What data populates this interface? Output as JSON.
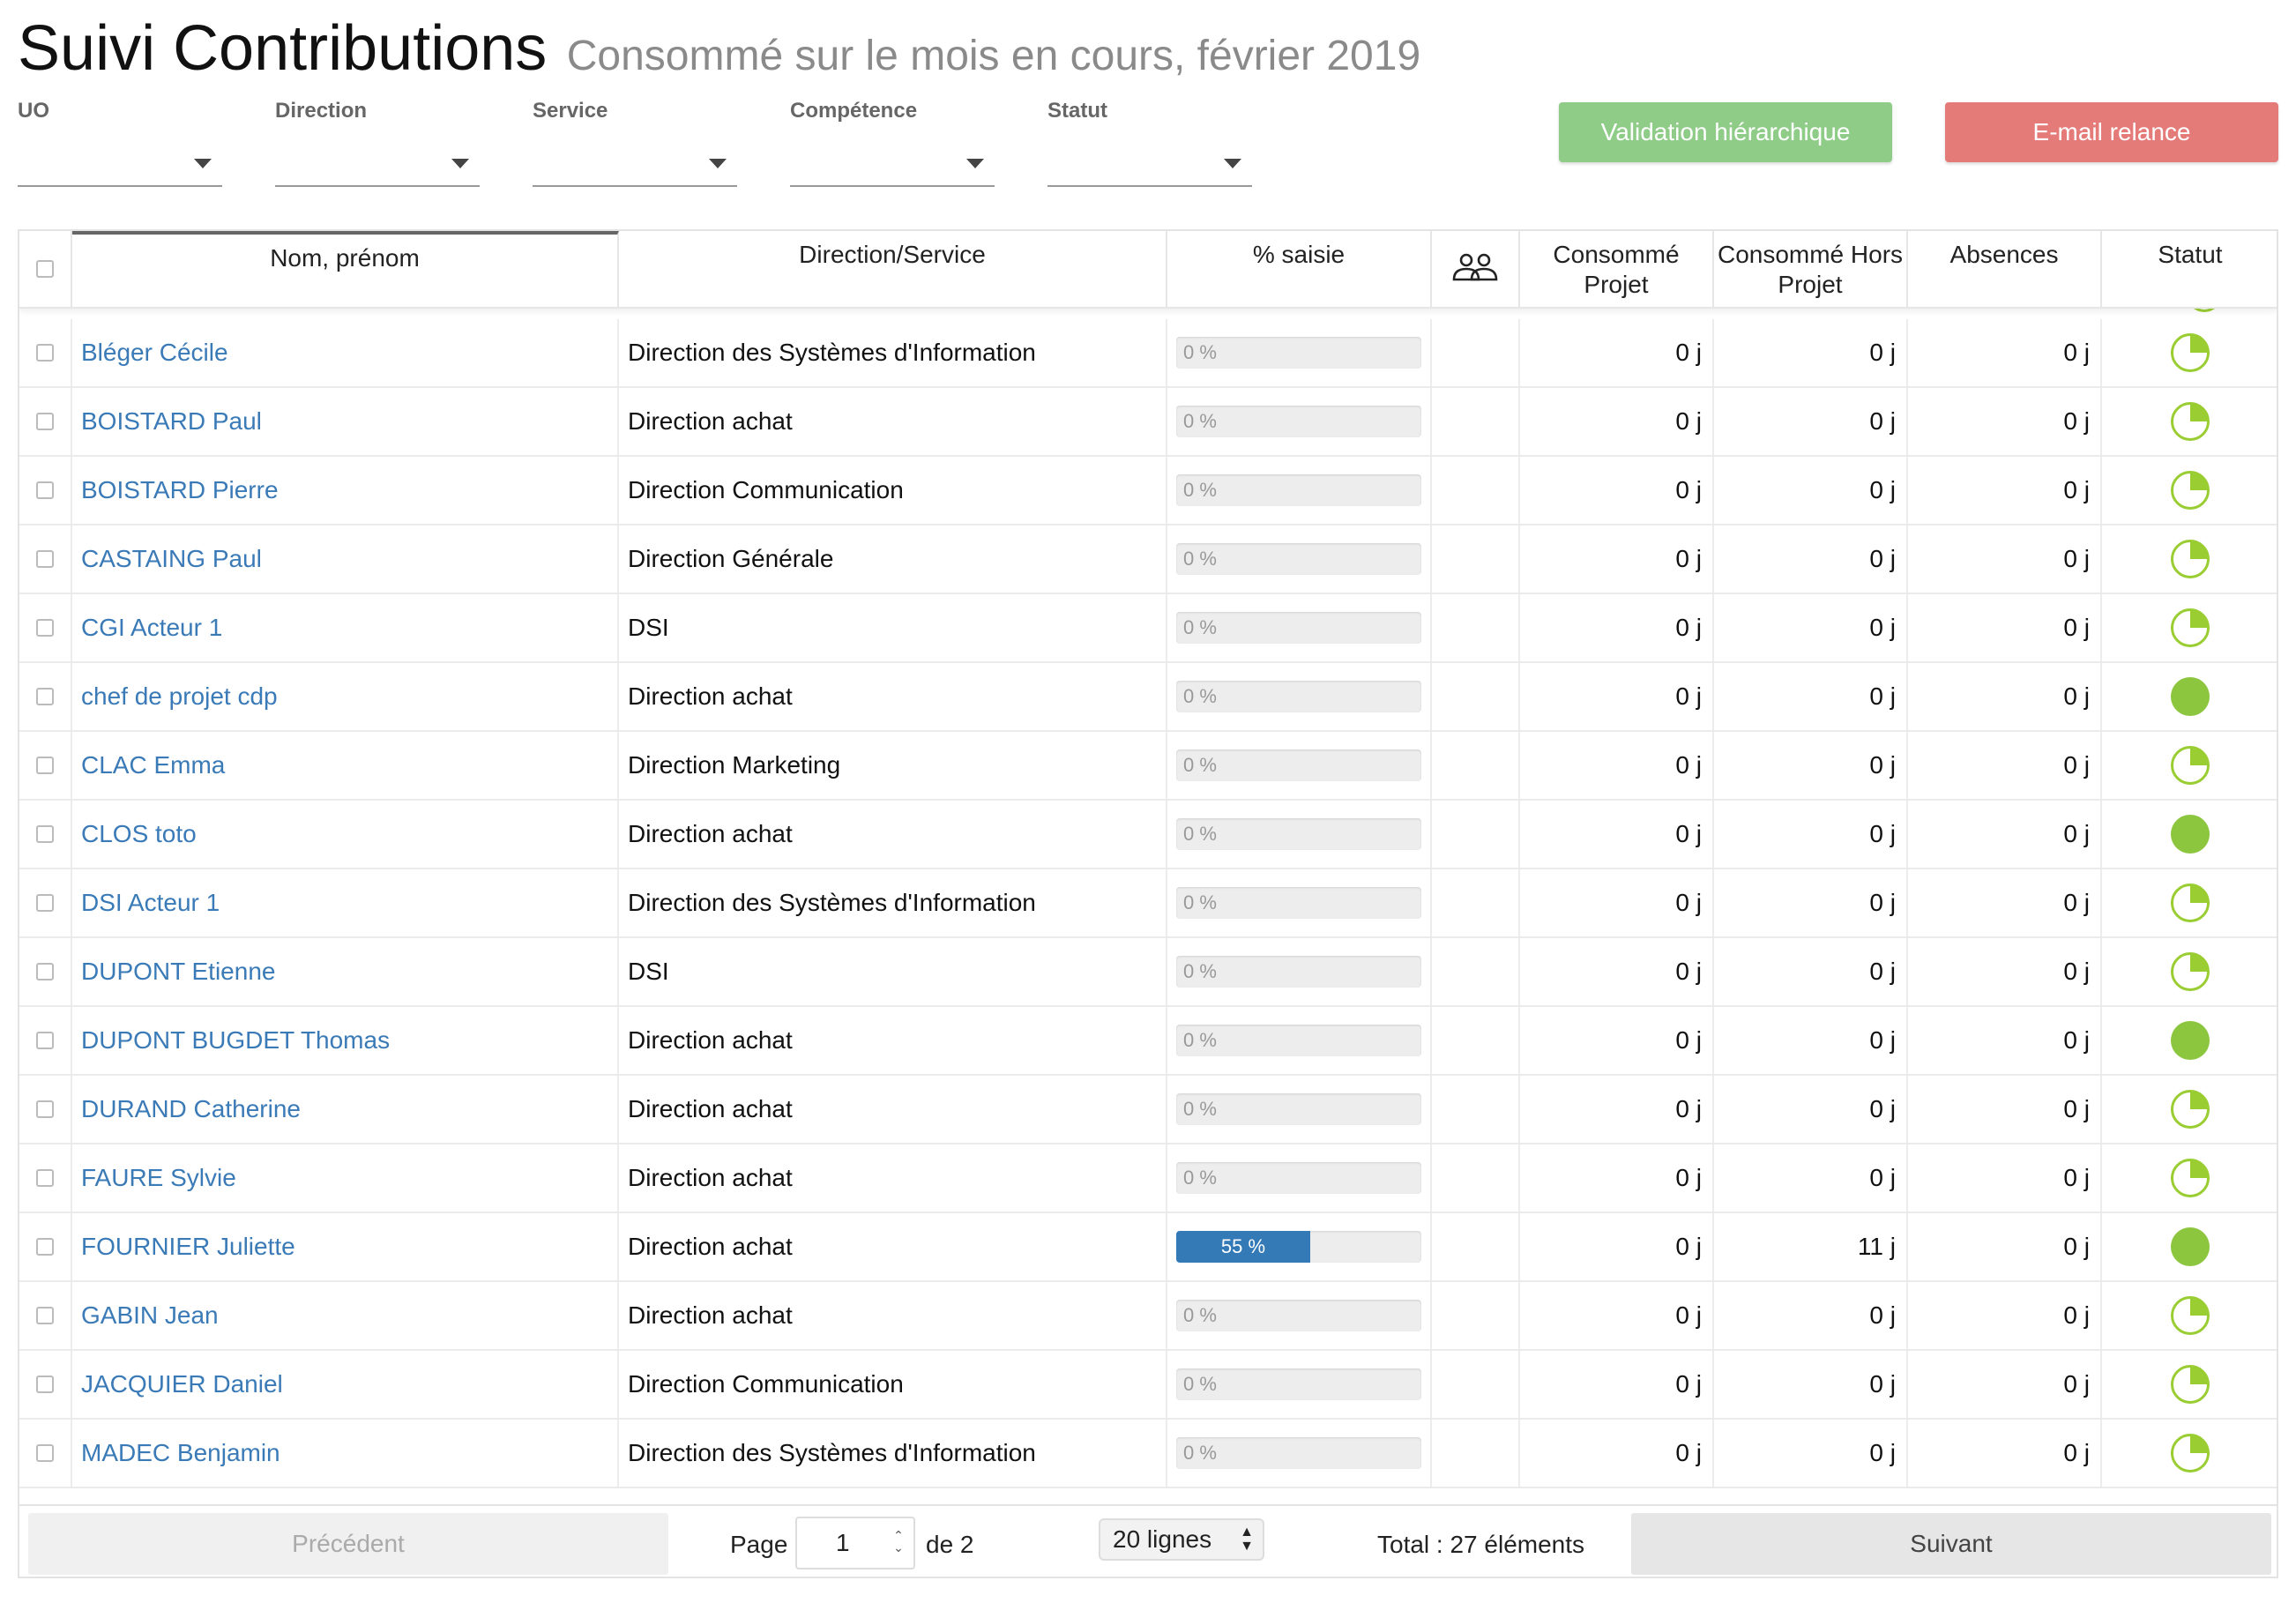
{
  "header": {
    "title": "Suivi Contributions",
    "subtitle": "Consommé sur le mois en cours, février 2019"
  },
  "filters": [
    {
      "label": "UO",
      "value": ""
    },
    {
      "label": "Direction",
      "value": ""
    },
    {
      "label": "Service",
      "value": ""
    },
    {
      "label": "Compétence",
      "value": ""
    },
    {
      "label": "Statut",
      "value": ""
    }
  ],
  "actions": {
    "validation_label": "Validation hiérarchique",
    "relance_label": "E-mail relance"
  },
  "table": {
    "columns": {
      "name": "Nom, prénom",
      "direction": "Direction/Service",
      "saisie": "% saisie",
      "consomme_projet": "Consommé Projet",
      "consomme_hors_projet": "Consommé Hors Projet",
      "absences": "Absences",
      "statut": "Statut"
    },
    "group_icon": "users-icon",
    "status_colors": {
      "partial": "#9acd32",
      "complete": "#8cc63f"
    },
    "rows": [
      {
        "name": "Bléger Cécile",
        "direction": "Direction des Systèmes d'Information",
        "saisie": 0,
        "saisie_label": "0 %",
        "projet": "0 j",
        "hors_projet": "0 j",
        "absences": "0 j",
        "status": "partial"
      },
      {
        "name": "BOISTARD Paul",
        "direction": "Direction achat",
        "saisie": 0,
        "saisie_label": "0 %",
        "projet": "0 j",
        "hors_projet": "0 j",
        "absences": "0 j",
        "status": "partial"
      },
      {
        "name": "BOISTARD Pierre",
        "direction": "Direction Communication",
        "saisie": 0,
        "saisie_label": "0 %",
        "projet": "0 j",
        "hors_projet": "0 j",
        "absences": "0 j",
        "status": "partial"
      },
      {
        "name": "CASTAING Paul",
        "direction": "Direction Générale",
        "saisie": 0,
        "saisie_label": "0 %",
        "projet": "0 j",
        "hors_projet": "0 j",
        "absences": "0 j",
        "status": "partial"
      },
      {
        "name": "CGI Acteur 1",
        "direction": "DSI",
        "saisie": 0,
        "saisie_label": "0 %",
        "projet": "0 j",
        "hors_projet": "0 j",
        "absences": "0 j",
        "status": "partial"
      },
      {
        "name": "chef de projet cdp",
        "direction": "Direction achat",
        "saisie": 0,
        "saisie_label": "0 %",
        "projet": "0 j",
        "hors_projet": "0 j",
        "absences": "0 j",
        "status": "complete"
      },
      {
        "name": "CLAC Emma",
        "direction": "Direction Marketing",
        "saisie": 0,
        "saisie_label": "0 %",
        "projet": "0 j",
        "hors_projet": "0 j",
        "absences": "0 j",
        "status": "partial"
      },
      {
        "name": "CLOS toto",
        "direction": "Direction achat",
        "saisie": 0,
        "saisie_label": "0 %",
        "projet": "0 j",
        "hors_projet": "0 j",
        "absences": "0 j",
        "status": "complete"
      },
      {
        "name": "DSI Acteur 1",
        "direction": "Direction des Systèmes d'Information",
        "saisie": 0,
        "saisie_label": "0 %",
        "projet": "0 j",
        "hors_projet": "0 j",
        "absences": "0 j",
        "status": "partial"
      },
      {
        "name": "DUPONT Etienne",
        "direction": "DSI",
        "saisie": 0,
        "saisie_label": "0 %",
        "projet": "0 j",
        "hors_projet": "0 j",
        "absences": "0 j",
        "status": "partial"
      },
      {
        "name": "DUPONT BUGDET Thomas",
        "direction": "Direction achat",
        "saisie": 0,
        "saisie_label": "0 %",
        "projet": "0 j",
        "hors_projet": "0 j",
        "absences": "0 j",
        "status": "complete"
      },
      {
        "name": "DURAND Catherine",
        "direction": "Direction achat",
        "saisie": 0,
        "saisie_label": "0 %",
        "projet": "0 j",
        "hors_projet": "0 j",
        "absences": "0 j",
        "status": "partial"
      },
      {
        "name": "FAURE Sylvie",
        "direction": "Direction achat",
        "saisie": 0,
        "saisie_label": "0 %",
        "projet": "0 j",
        "hors_projet": "0 j",
        "absences": "0 j",
        "status": "partial"
      },
      {
        "name": "FOURNIER Juliette",
        "direction": "Direction achat",
        "saisie": 55,
        "saisie_label": "55 %",
        "projet": "0 j",
        "hors_projet": "11 j",
        "absences": "0 j",
        "status": "complete"
      },
      {
        "name": "GABIN Jean",
        "direction": "Direction achat",
        "saisie": 0,
        "saisie_label": "0 %",
        "projet": "0 j",
        "hors_projet": "0 j",
        "absences": "0 j",
        "status": "partial"
      },
      {
        "name": "JACQUIER Daniel",
        "direction": "Direction Communication",
        "saisie": 0,
        "saisie_label": "0 %",
        "projet": "0 j",
        "hors_projet": "0 j",
        "absences": "0 j",
        "status": "partial"
      },
      {
        "name": "MADEC Benjamin",
        "direction": "Direction des Systèmes d'Information",
        "saisie": 0,
        "saisie_label": "0 %",
        "projet": "0 j",
        "hors_projet": "0 j",
        "absences": "0 j",
        "status": "partial"
      }
    ]
  },
  "pagination": {
    "prev_label": "Précédent",
    "next_label": "Suivant",
    "page_label": "Page",
    "page_value": "1",
    "of_label": "de 2",
    "lines_label": "20 lignes",
    "total_label": "Total : 27 éléments"
  }
}
